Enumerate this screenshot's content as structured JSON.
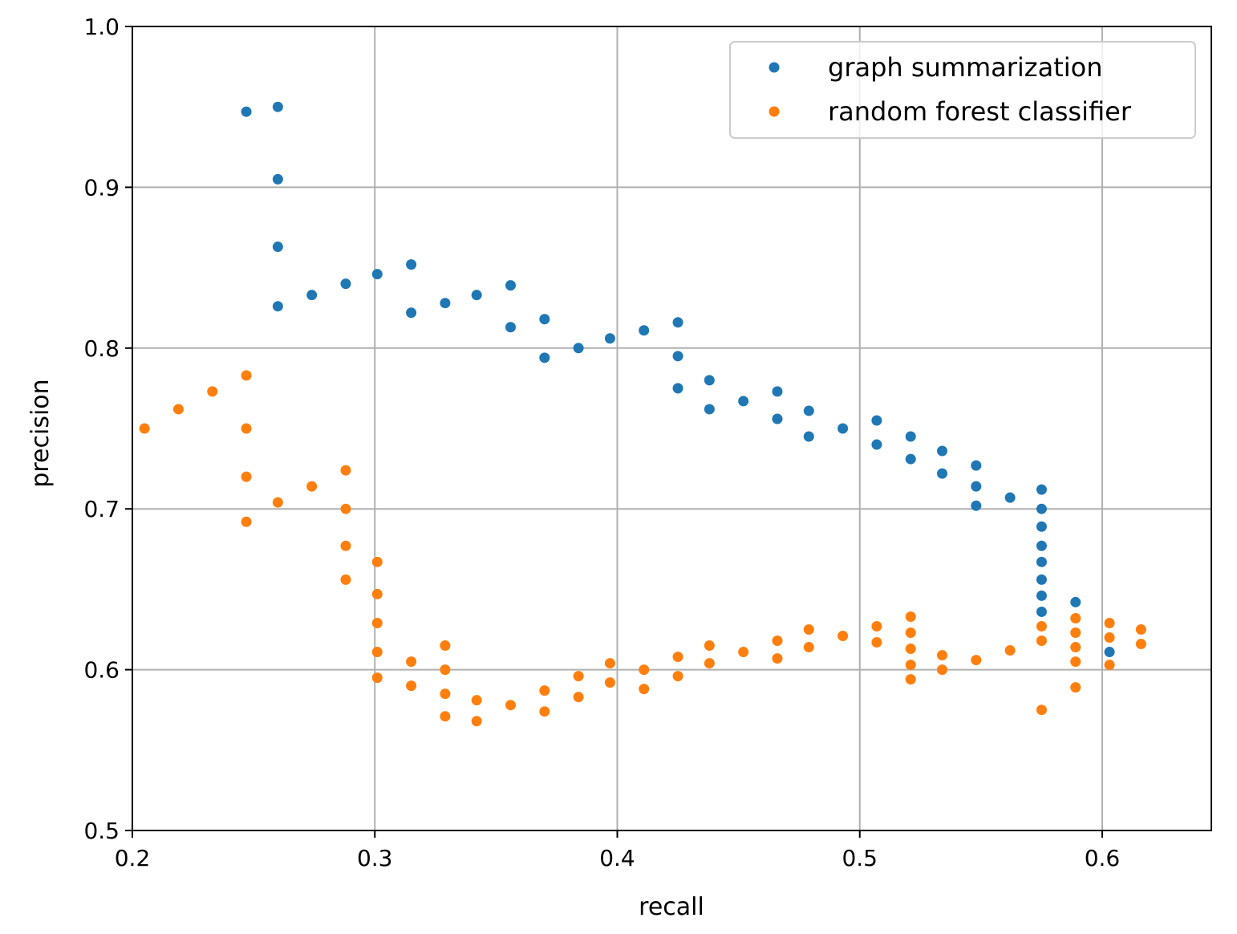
{
  "chart_data": {
    "type": "scatter",
    "title": "",
    "xlabel": "recall",
    "ylabel": "precision",
    "xlim": [
      0.2,
      0.645
    ],
    "ylim": [
      0.5,
      1.0
    ],
    "grid": true,
    "legend_position": "top-right",
    "xticks": [
      0.2,
      0.3,
      0.4,
      0.5,
      0.6
    ],
    "xtick_labels": [
      "0.2",
      "0.3",
      "0.4",
      "0.5",
      "0.6"
    ],
    "yticks": [
      0.5,
      0.6,
      0.7,
      0.8,
      0.9,
      1.0
    ],
    "ytick_labels": [
      "0.5",
      "0.6",
      "0.7",
      "0.8",
      "0.9",
      "1.0"
    ],
    "series": [
      {
        "name": "graph summarization",
        "color": "#1f77b4",
        "points": [
          [
            0.247,
            0.947
          ],
          [
            0.26,
            0.95
          ],
          [
            0.26,
            0.905
          ],
          [
            0.26,
            0.863
          ],
          [
            0.26,
            0.826
          ],
          [
            0.274,
            0.833
          ],
          [
            0.288,
            0.84
          ],
          [
            0.301,
            0.846
          ],
          [
            0.315,
            0.852
          ],
          [
            0.315,
            0.822
          ],
          [
            0.329,
            0.828
          ],
          [
            0.342,
            0.833
          ],
          [
            0.356,
            0.839
          ],
          [
            0.356,
            0.813
          ],
          [
            0.37,
            0.818
          ],
          [
            0.37,
            0.794
          ],
          [
            0.384,
            0.8
          ],
          [
            0.397,
            0.806
          ],
          [
            0.411,
            0.811
          ],
          [
            0.425,
            0.816
          ],
          [
            0.425,
            0.795
          ],
          [
            0.425,
            0.775
          ],
          [
            0.438,
            0.78
          ],
          [
            0.438,
            0.762
          ],
          [
            0.452,
            0.767
          ],
          [
            0.466,
            0.773
          ],
          [
            0.466,
            0.756
          ],
          [
            0.479,
            0.761
          ],
          [
            0.479,
            0.745
          ],
          [
            0.493,
            0.75
          ],
          [
            0.507,
            0.755
          ],
          [
            0.507,
            0.74
          ],
          [
            0.521,
            0.745
          ],
          [
            0.521,
            0.731
          ],
          [
            0.534,
            0.736
          ],
          [
            0.534,
            0.722
          ],
          [
            0.548,
            0.727
          ],
          [
            0.548,
            0.714
          ],
          [
            0.548,
            0.702
          ],
          [
            0.562,
            0.707
          ],
          [
            0.575,
            0.712
          ],
          [
            0.575,
            0.7
          ],
          [
            0.575,
            0.689
          ],
          [
            0.575,
            0.677
          ],
          [
            0.575,
            0.667
          ],
          [
            0.575,
            0.656
          ],
          [
            0.575,
            0.646
          ],
          [
            0.575,
            0.636
          ],
          [
            0.589,
            0.642
          ],
          [
            0.603,
            0.611
          ]
        ]
      },
      {
        "name": "random forest classifier",
        "color": "#ff7f0e",
        "points": [
          [
            0.205,
            0.75
          ],
          [
            0.219,
            0.762
          ],
          [
            0.233,
            0.773
          ],
          [
            0.247,
            0.783
          ],
          [
            0.247,
            0.75
          ],
          [
            0.247,
            0.72
          ],
          [
            0.247,
            0.692
          ],
          [
            0.26,
            0.704
          ],
          [
            0.274,
            0.714
          ],
          [
            0.288,
            0.724
          ],
          [
            0.288,
            0.7
          ],
          [
            0.288,
            0.677
          ],
          [
            0.288,
            0.656
          ],
          [
            0.301,
            0.667
          ],
          [
            0.301,
            0.647
          ],
          [
            0.301,
            0.629
          ],
          [
            0.301,
            0.611
          ],
          [
            0.301,
            0.595
          ],
          [
            0.315,
            0.605
          ],
          [
            0.315,
            0.59
          ],
          [
            0.329,
            0.615
          ],
          [
            0.329,
            0.6
          ],
          [
            0.329,
            0.585
          ],
          [
            0.329,
            0.571
          ],
          [
            0.342,
            0.581
          ],
          [
            0.342,
            0.568
          ],
          [
            0.356,
            0.578
          ],
          [
            0.37,
            0.587
          ],
          [
            0.37,
            0.574
          ],
          [
            0.384,
            0.596
          ],
          [
            0.384,
            0.583
          ],
          [
            0.397,
            0.604
          ],
          [
            0.397,
            0.592
          ],
          [
            0.411,
            0.6
          ],
          [
            0.411,
            0.588
          ],
          [
            0.425,
            0.608
          ],
          [
            0.425,
            0.596
          ],
          [
            0.438,
            0.615
          ],
          [
            0.438,
            0.604
          ],
          [
            0.452,
            0.611
          ],
          [
            0.466,
            0.618
          ],
          [
            0.466,
            0.607
          ],
          [
            0.479,
            0.625
          ],
          [
            0.479,
            0.614
          ],
          [
            0.493,
            0.621
          ],
          [
            0.507,
            0.627
          ],
          [
            0.507,
            0.617
          ],
          [
            0.521,
            0.633
          ],
          [
            0.521,
            0.623
          ],
          [
            0.521,
            0.613
          ],
          [
            0.521,
            0.603
          ],
          [
            0.521,
            0.594
          ],
          [
            0.534,
            0.609
          ],
          [
            0.534,
            0.6
          ],
          [
            0.548,
            0.606
          ],
          [
            0.562,
            0.612
          ],
          [
            0.575,
            0.627
          ],
          [
            0.575,
            0.618
          ],
          [
            0.575,
            0.575
          ],
          [
            0.589,
            0.632
          ],
          [
            0.589,
            0.623
          ],
          [
            0.589,
            0.614
          ],
          [
            0.589,
            0.605
          ],
          [
            0.589,
            0.589
          ],
          [
            0.603,
            0.629
          ],
          [
            0.603,
            0.62
          ],
          [
            0.603,
            0.603
          ],
          [
            0.616,
            0.625
          ],
          [
            0.616,
            0.616
          ]
        ]
      }
    ]
  }
}
